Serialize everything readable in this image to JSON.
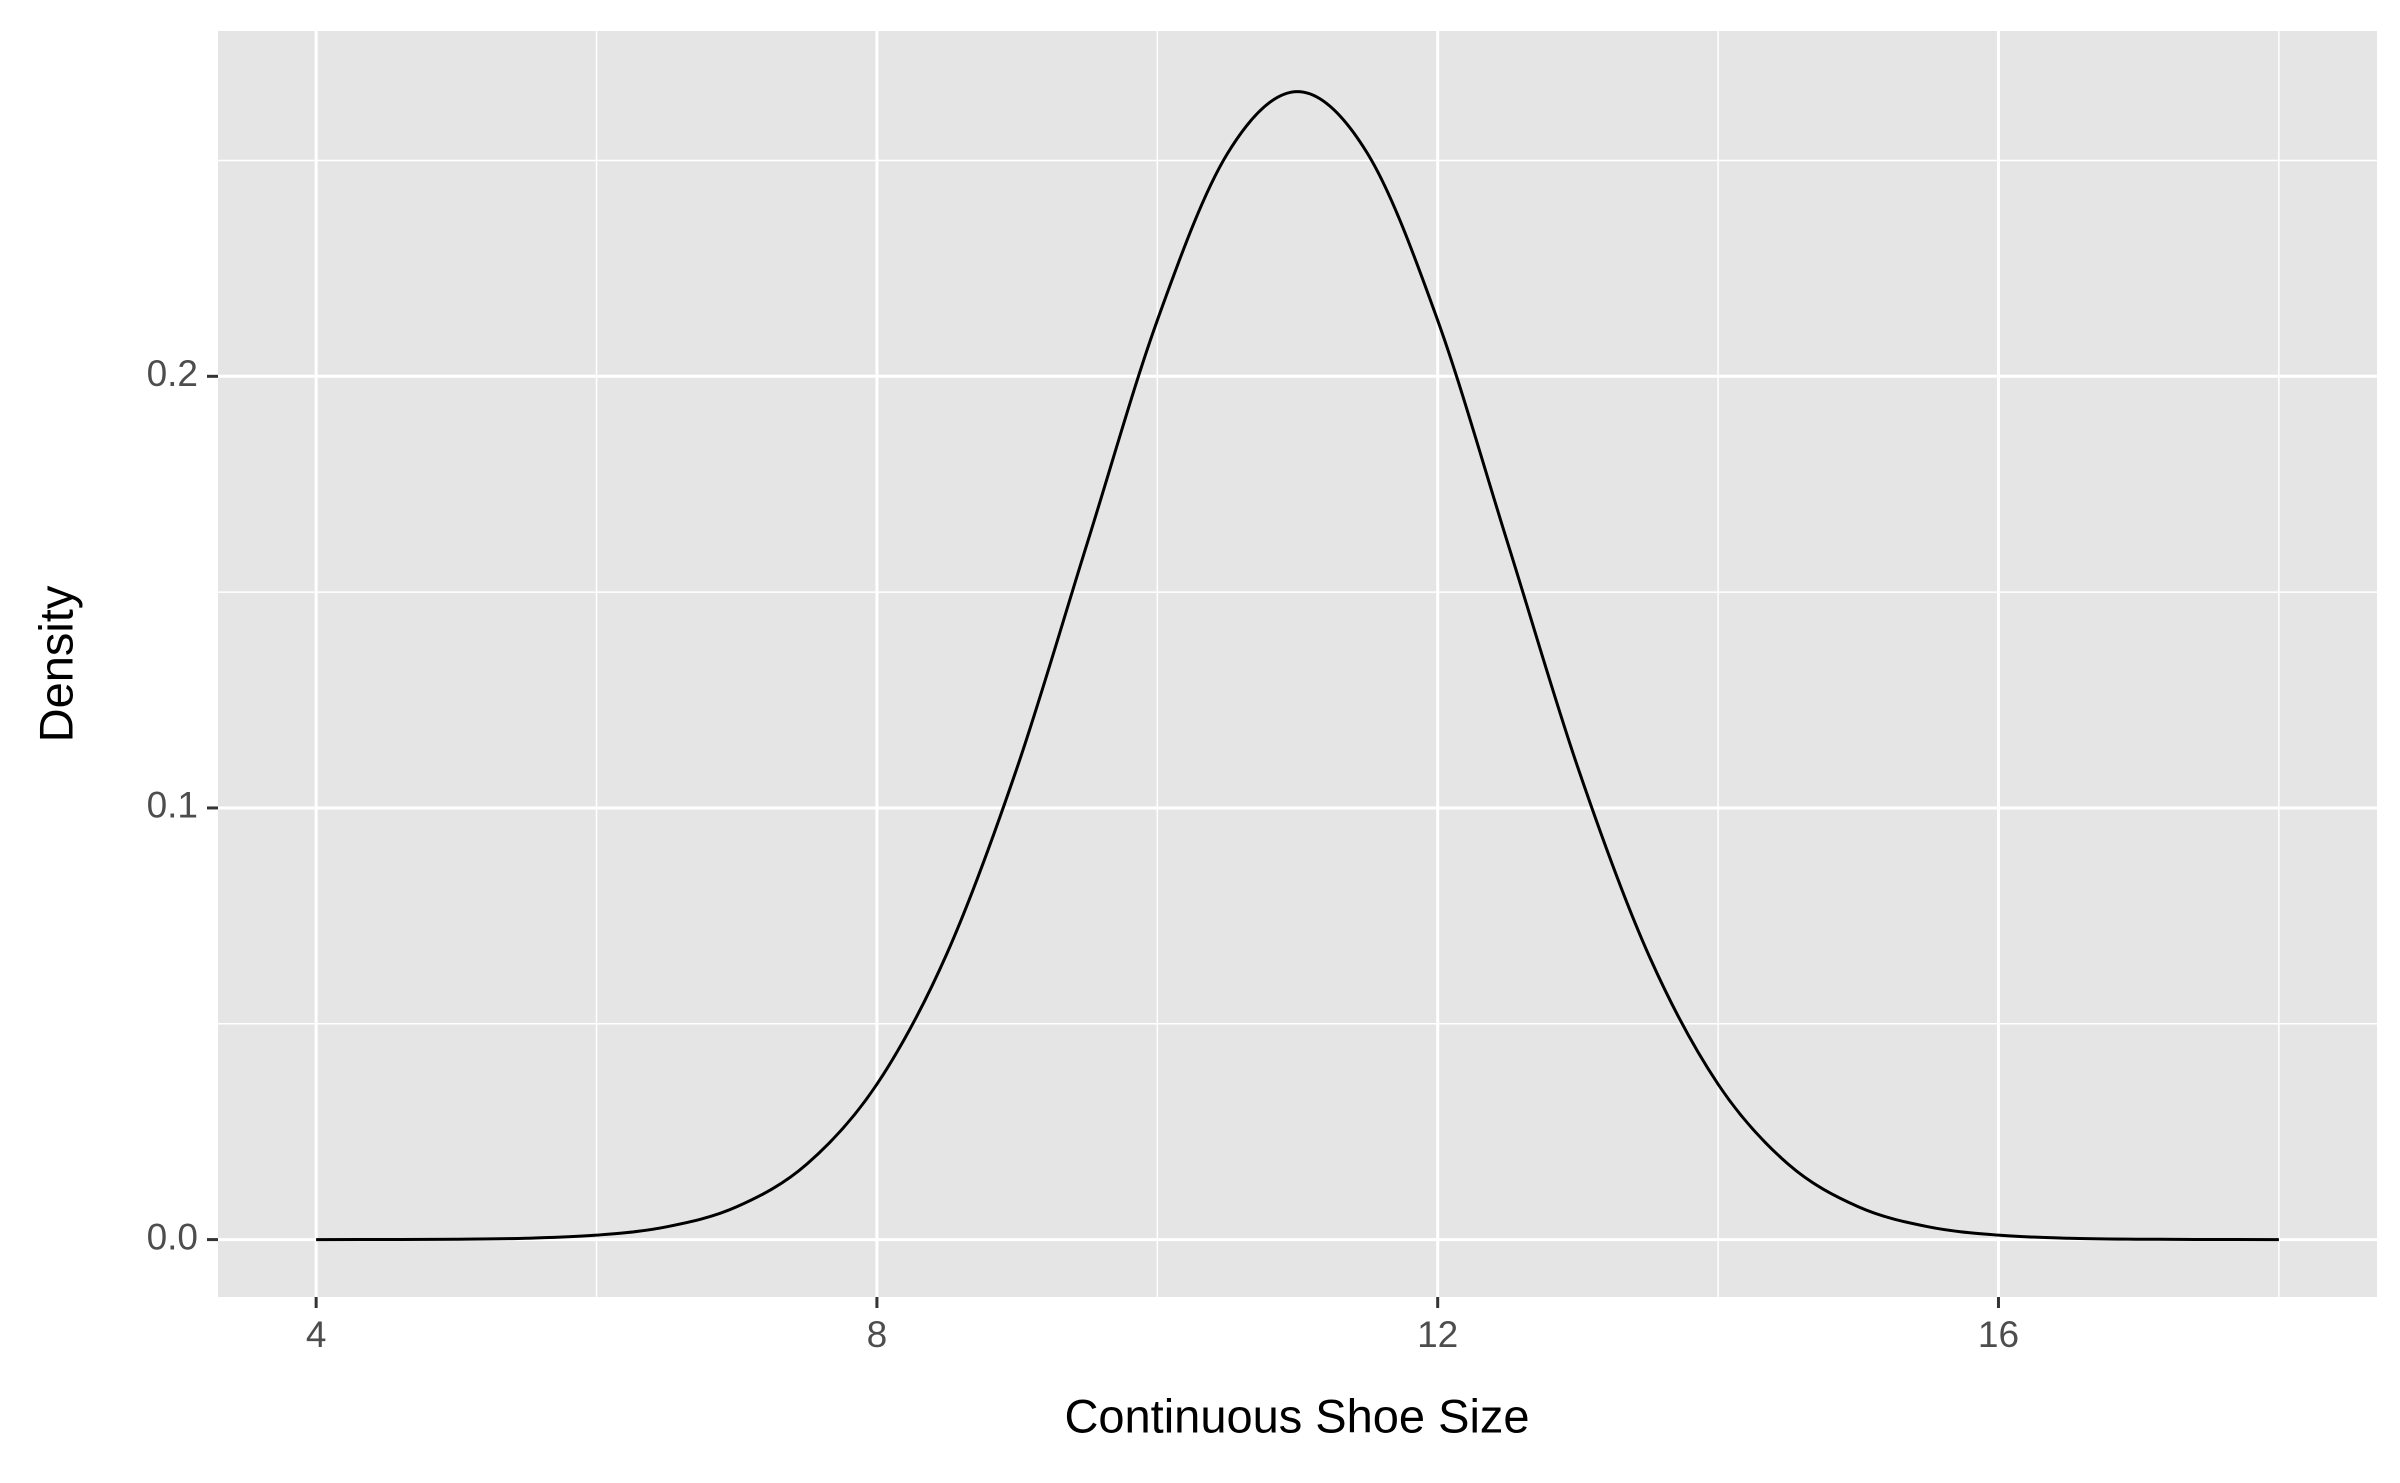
{
  "chart_data": {
    "type": "line",
    "x_label": "Continuous Shoe Size",
    "y_label": "Density",
    "x": [
      4,
      4.5,
      5,
      5.5,
      6,
      6.5,
      7,
      7.5,
      8,
      8.5,
      9,
      9.5,
      10,
      10.5,
      11,
      11.5,
      12,
      12.5,
      13,
      13.5,
      14,
      14.5,
      15,
      15.5,
      16,
      16.5,
      17,
      17.5,
      18
    ],
    "series": [
      {
        "color": "#000000",
        "values": [
          5e-06,
          2.22e-05,
          8.92e-05,
          0.00032,
          0.001027,
          0.002955,
          0.007597,
          0.017476,
          0.035994,
          0.066318,
          0.10934,
          0.161314,
          0.212965,
          0.251589,
          0.265962,
          0.251589,
          0.212965,
          0.161314,
          0.10934,
          0.066318,
          0.035994,
          0.017476,
          0.007597,
          0.002955,
          0.001027,
          0.00032,
          8.92e-05,
          2.22e-05,
          5e-06
        ]
      }
    ],
    "xlim": [
      3.3,
      18.7
    ],
    "ylim": [
      -0.0133,
      0.28
    ],
    "xticks": [
      4,
      8,
      12,
      16
    ],
    "yticks": [
      {
        "value": 0,
        "label": "0.0"
      },
      0.1,
      0.2
    ],
    "grid": true
  }
}
